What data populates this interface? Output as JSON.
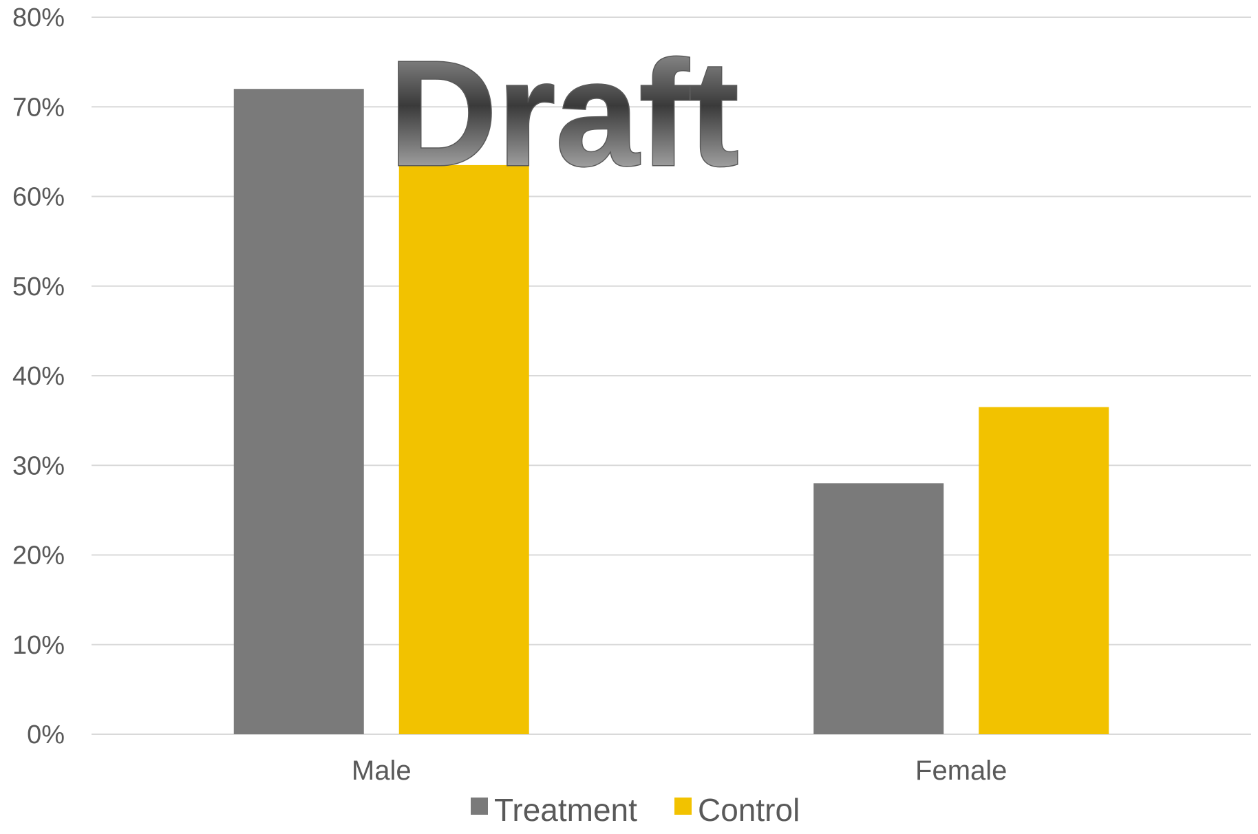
{
  "chart_data": {
    "type": "bar",
    "categories": [
      "Male",
      "Female"
    ],
    "series": [
      {
        "name": "Treatment",
        "values": [
          72,
          28
        ],
        "color": "#7a7a7a"
      },
      {
        "name": "Control",
        "values": [
          63.5,
          36.5
        ],
        "color": "#f2c200"
      }
    ],
    "yticks": [
      "0%",
      "10%",
      "20%",
      "30%",
      "40%",
      "50%",
      "60%",
      "70%",
      "80%"
    ],
    "ylim": [
      0,
      80
    ],
    "y_unit": "%",
    "grid": true,
    "legend_position": "bottom-center",
    "title": "",
    "xlabel": "",
    "ylabel": ""
  },
  "watermark": {
    "text": "Draft"
  },
  "colors": {
    "gridline": "#d9d9d9",
    "axis": "#d9d9d9",
    "text": "#595959",
    "watermark_dark": "#3a3a3a",
    "watermark_light": "#d0d0d0"
  }
}
